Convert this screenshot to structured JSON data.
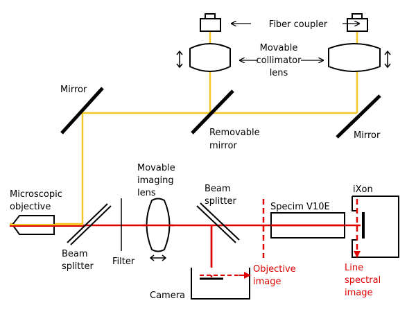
{
  "labels": {
    "fiber_coupler": "Fiber coupler",
    "collimator_1": "Movable",
    "collimator_2": "collimator",
    "collimator_3": "lens",
    "mirror_left": "Mirror",
    "mirror_right": "Mirror",
    "removable_1": "Removable",
    "removable_2": "mirror",
    "objective_1": "Microscopic",
    "objective_2": "objective",
    "bs1_1": "Beam",
    "bs1_2": "splitter",
    "filter": "Filter",
    "imaging_1": "Movable",
    "imaging_2": "imaging",
    "imaging_3": "lens",
    "bs2_1": "Beam",
    "bs2_2": "splitter",
    "camera": "Camera",
    "spectrograph": "Specim V10E",
    "detector": "iXon",
    "obj_image_1": "Objective",
    "obj_image_2": "image",
    "line_image_1": "Line",
    "line_image_2": "spectral",
    "line_image_3": "image"
  },
  "colors": {
    "fiber_path": "#f3c623",
    "laser_path": "#e00000",
    "optics": "#000000",
    "annotation": "#e00000"
  }
}
